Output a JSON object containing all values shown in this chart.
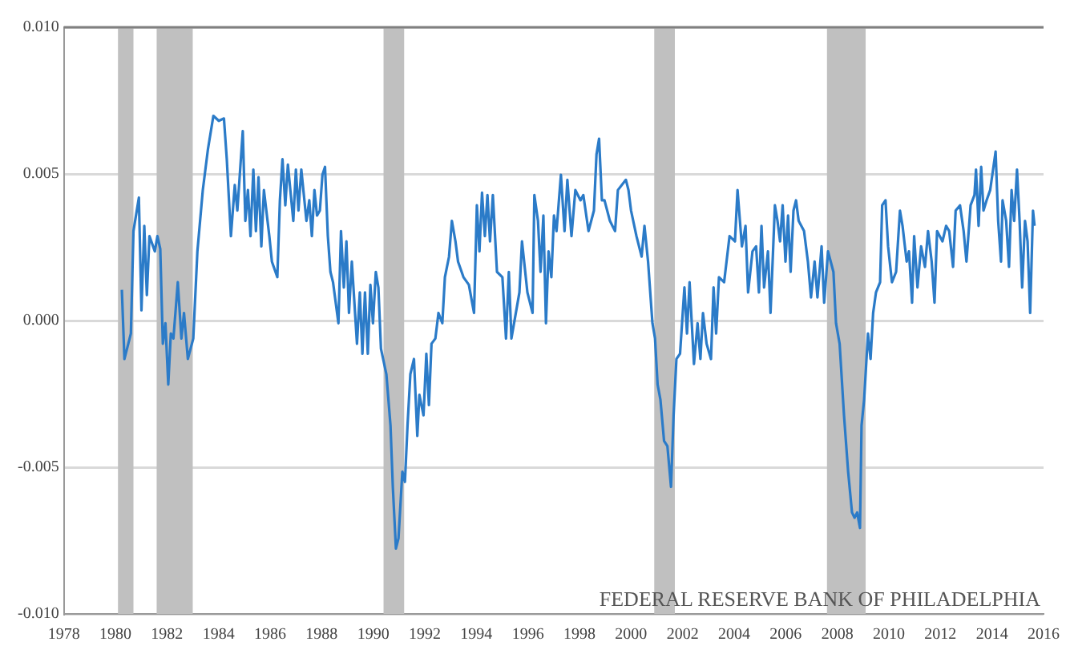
{
  "chart_data": {
    "type": "line",
    "grid": "y",
    "legend": false,
    "marker": "none",
    "line_style": "solid",
    "xlim": [
      1978,
      2016
    ],
    "xticks": [
      1978,
      1980,
      1982,
      1984,
      1986,
      1988,
      1990,
      1992,
      1994,
      1996,
      1998,
      2000,
      2002,
      2004,
      2006,
      2008,
      2010,
      2012,
      2014,
      2016
    ],
    "ylim": [
      -0.01,
      0.01
    ],
    "yticks": [
      {
        "value": -0.01,
        "label": "-0.010"
      },
      {
        "value": -0.005,
        "label": "-0.005"
      },
      {
        "value": 0,
        "label": "0.000"
      },
      {
        "value": 0.005,
        "label": "0.005"
      },
      {
        "value": 0.01,
        "label": "0.010"
      }
    ],
    "bands": [
      {
        "axis": "x",
        "from": 1980.1,
        "to": 1980.7,
        "color": "#c0c0c0"
      },
      {
        "axis": "x",
        "from": 1981.6,
        "to": 1983.0,
        "color": "#c0c0c0"
      },
      {
        "axis": "x",
        "from": 1990.4,
        "to": 1991.2,
        "color": "#c0c0c0"
      },
      {
        "axis": "x",
        "from": 2000.9,
        "to": 2001.7,
        "color": "#c0c0c0"
      },
      {
        "axis": "x",
        "from": 2007.6,
        "to": 2009.1,
        "color": "#c0c0c0"
      }
    ],
    "annotations": [
      "FEDERAL RESERVE BANK OF PHILADELPHIA"
    ],
    "series": [
      {
        "color": "#2b7bc8",
        "x": [
          1980.25,
          1980.35,
          1980.6,
          1980.7,
          1980.91,
          1981.01,
          1981.12,
          1981.22,
          1981.32,
          1981.53,
          1981.63,
          1981.74,
          1981.84,
          1981.94,
          1982.05,
          1982.15,
          1982.25,
          1982.42,
          1982.56,
          1982.66,
          1982.81,
          1983.02,
          1983.18,
          1983.39,
          1983.59,
          1983.8,
          1984.01,
          1984.21,
          1984.32,
          1984.48,
          1984.63,
          1984.73,
          1984.94,
          1985.04,
          1985.14,
          1985.24,
          1985.35,
          1985.45,
          1985.55,
          1985.66,
          1985.76,
          1985.97,
          1986.07,
          1986.28,
          1986.38,
          1986.48,
          1986.59,
          1986.69,
          1986.9,
          1987.0,
          1987.1,
          1987.21,
          1987.41,
          1987.52,
          1987.62,
          1987.72,
          1987.82,
          1987.93,
          1988.03,
          1988.13,
          1988.24,
          1988.34,
          1988.44,
          1988.65,
          1988.75,
          1988.86,
          1988.96,
          1989.06,
          1989.17,
          1989.37,
          1989.48,
          1989.58,
          1989.68,
          1989.79,
          1989.89,
          1989.99,
          1990.1,
          1990.2,
          1990.3,
          1990.51,
          1990.67,
          1990.76,
          1990.88,
          1990.98,
          1991.13,
          1991.23,
          1991.33,
          1991.44,
          1991.58,
          1991.71,
          1991.79,
          1991.95,
          1992.06,
          1992.16,
          1992.26,
          1992.41,
          1992.53,
          1992.68,
          1992.78,
          1992.94,
          1993.05,
          1993.19,
          1993.29,
          1993.5,
          1993.71,
          1993.91,
          1994.02,
          1994.12,
          1994.22,
          1994.33,
          1994.43,
          1994.53,
          1994.64,
          1994.8,
          1995.01,
          1995.15,
          1995.26,
          1995.36,
          1995.67,
          1995.77,
          1995.98,
          1996.18,
          1996.25,
          1996.39,
          1996.49,
          1996.6,
          1996.7,
          1996.8,
          1996.91,
          1997.01,
          1997.11,
          1997.28,
          1997.42,
          1997.53,
          1997.69,
          1997.84,
          1998.04,
          1998.15,
          1998.35,
          1998.56,
          1998.66,
          1998.76,
          1998.87,
          1998.97,
          1999.18,
          1999.38,
          1999.49,
          1999.8,
          1999.9,
          2000.0,
          2000.21,
          2000.41,
          2000.52,
          2000.66,
          2000.83,
          2000.93,
          2001.03,
          2001.14,
          2001.28,
          2001.41,
          2001.55,
          2001.65,
          2001.76,
          2001.9,
          2002.07,
          2002.17,
          2002.27,
          2002.44,
          2002.58,
          2002.69,
          2002.79,
          2002.93,
          2003.1,
          2003.2,
          2003.3,
          2003.41,
          2003.61,
          2003.82,
          2004.03,
          2004.13,
          2004.3,
          2004.44,
          2004.54,
          2004.71,
          2004.85,
          2004.96,
          2005.06,
          2005.16,
          2005.31,
          2005.41,
          2005.58,
          2005.68,
          2005.78,
          2005.88,
          2005.99,
          2006.09,
          2006.19,
          2006.3,
          2006.4,
          2006.5,
          2006.71,
          2006.86,
          2006.98,
          2007.12,
          2007.23,
          2007.39,
          2007.49,
          2007.64,
          2007.85,
          2007.95,
          2008.09,
          2008.26,
          2008.42,
          2008.57,
          2008.67,
          2008.77,
          2008.88,
          2008.94,
          2009.04,
          2009.19,
          2009.29,
          2009.39,
          2009.5,
          2009.66,
          2009.74,
          2009.87,
          2009.97,
          2010.12,
          2010.28,
          2010.43,
          2010.53,
          2010.69,
          2010.78,
          2010.9,
          2010.98,
          2011.11,
          2011.25,
          2011.4,
          2011.52,
          2011.66,
          2011.77,
          2011.87,
          2012.08,
          2012.22,
          2012.34,
          2012.49,
          2012.59,
          2012.76,
          2012.9,
          2013.01,
          2013.17,
          2013.32,
          2013.38,
          2013.48,
          2013.58,
          2013.67,
          2013.79,
          2013.93,
          2014.14,
          2014.24,
          2014.35,
          2014.41,
          2014.55,
          2014.66,
          2014.76,
          2014.86,
          2014.97,
          2015.07,
          2015.17,
          2015.28,
          2015.38,
          2015.48,
          2015.59,
          2015.65
        ],
        "values": [
          0.00105,
          -0.00131,
          -0.00044,
          0.00305,
          0.00419,
          0.00035,
          0.00323,
          0.00087,
          0.00288,
          0.00236,
          0.00288,
          0.00244,
          -0.00079,
          -9e-05,
          -0.00218,
          -0.00044,
          -0.00061,
          0.00131,
          -0.00061,
          0.00026,
          -0.00131,
          -0.00061,
          0.00236,
          0.00445,
          0.00585,
          0.00698,
          0.00681,
          0.00689,
          0.0055,
          0.00288,
          0.00462,
          0.00375,
          0.00646,
          0.0034,
          0.00445,
          0.00288,
          0.00515,
          0.00305,
          0.00489,
          0.00253,
          0.00445,
          0.00288,
          0.00201,
          0.00148,
          0.0041,
          0.0055,
          0.00393,
          0.00532,
          0.0034,
          0.00515,
          0.00375,
          0.00515,
          0.0034,
          0.0041,
          0.00288,
          0.00445,
          0.00358,
          0.00375,
          0.00497,
          0.00524,
          0.00288,
          0.00166,
          0.00131,
          -9e-05,
          0.00305,
          0.00113,
          0.0027,
          0.00026,
          0.00201,
          -0.00079,
          0.00096,
          -0.00113,
          0.00096,
          -0.00113,
          0.00122,
          -9e-05,
          0.00166,
          0.00113,
          -0.00096,
          -0.00183,
          -0.00358,
          -0.00567,
          -0.00777,
          -0.00742,
          -0.00515,
          -0.0055,
          -0.00358,
          -0.00183,
          -0.00131,
          -0.00393,
          -0.00253,
          -0.00323,
          -0.00113,
          -0.00288,
          -0.00079,
          -0.00061,
          0.00026,
          -9e-05,
          0.00148,
          0.00218,
          0.0034,
          0.0027,
          0.00201,
          0.00148,
          0.00122,
          0.00026,
          0.00393,
          0.00236,
          0.00436,
          0.00288,
          0.00428,
          0.0027,
          0.00428,
          0.00166,
          0.00148,
          -0.00061,
          0.00166,
          -0.00061,
          0.00096,
          0.0027,
          0.00096,
          0.00026,
          0.00428,
          0.0034,
          0.00166,
          0.00358,
          -9e-05,
          0.00236,
          0.00148,
          0.00358,
          0.00305,
          0.00497,
          0.00305,
          0.0048,
          0.00288,
          0.00445,
          0.0041,
          0.00428,
          0.00305,
          0.00375,
          0.00567,
          0.0062,
          0.0041,
          0.0041,
          0.0034,
          0.00305,
          0.00445,
          0.0048,
          0.00445,
          0.00375,
          0.00288,
          0.00218,
          0.00323,
          0.00201,
          -9e-05,
          -0.00061,
          -0.00218,
          -0.0027,
          -0.0041,
          -0.00428,
          -0.00567,
          -0.00323,
          -0.00131,
          -0.00113,
          0.00113,
          -0.00044,
          0.00131,
          -0.00148,
          -9e-05,
          -0.00131,
          0.00026,
          -0.00079,
          -0.00131,
          0.00113,
          -0.00044,
          0.00148,
          0.00131,
          0.00288,
          0.0027,
          0.00445,
          0.00253,
          0.00323,
          0.00096,
          0.00236,
          0.00253,
          0.00096,
          0.00323,
          0.00113,
          0.00236,
          0.00026,
          0.00393,
          0.0034,
          0.0027,
          0.00393,
          0.00201,
          0.00358,
          0.00166,
          0.00375,
          0.0041,
          0.0034,
          0.00305,
          0.00201,
          0.00079,
          0.00201,
          0.00079,
          0.00253,
          0.00061,
          0.00236,
          0.00166,
          -9e-05,
          -0.00079,
          -0.00323,
          -0.00515,
          -0.00654,
          -0.00672,
          -0.00654,
          -0.00707,
          -0.00358,
          -0.0027,
          -0.00044,
          -0.00131,
          0.00026,
          0.00096,
          0.00131,
          0.00393,
          0.0041,
          0.00253,
          0.00131,
          0.00166,
          0.00375,
          0.00323,
          0.00201,
          0.00236,
          0.00061,
          0.00288,
          0.00113,
          0.00253,
          0.00183,
          0.00305,
          0.00201,
          0.00061,
          0.00305,
          0.0027,
          0.00323,
          0.00305,
          0.00183,
          0.00375,
          0.00393,
          0.00305,
          0.00201,
          0.00393,
          0.00428,
          0.00515,
          0.00323,
          0.00524,
          0.00375,
          0.0041,
          0.00445,
          0.00576,
          0.0034,
          0.00201,
          0.0041,
          0.0034,
          0.00183,
          0.00445,
          0.0034,
          0.00515,
          0.0034,
          0.00113,
          0.0034,
          0.0027,
          0.00026,
          0.00375,
          0.00323
        ]
      }
    ]
  }
}
